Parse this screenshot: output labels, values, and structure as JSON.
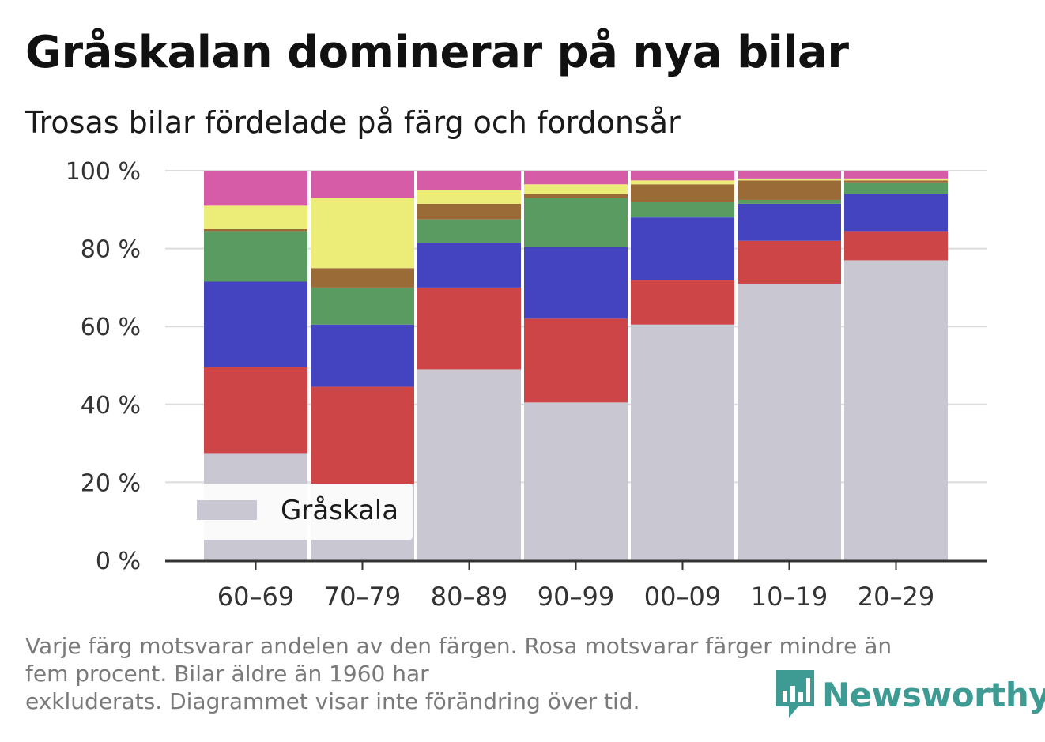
{
  "title": "Gråskalan dominerar på nya bilar",
  "subtitle": "Trosas bilar fördelade på färg och fordonsår",
  "caption": {
    "line1": "Varje färg motsvarar andelen av den färgen. Rosa motsvarar färger mindre än",
    "line2": "fem procent. Bilar äldre än 1960 har",
    "line3": "exkluderats. Diagrammet visar inte förändring över tid."
  },
  "logo": {
    "text": "Newsworthy",
    "icon": "newsworthy-bar-chart-icon",
    "color": "#3e9b93"
  },
  "chart_data": {
    "type": "bar",
    "stacked": true,
    "categories": [
      "60–69",
      "70–79",
      "80–89",
      "90–99",
      "00–09",
      "10–19",
      "20–29"
    ],
    "ylim": [
      0,
      100
    ],
    "yticks": [
      0,
      20,
      40,
      60,
      80,
      100
    ],
    "ytick_labels": [
      "0 %",
      "20 %",
      "40 %",
      "60 %",
      "80 %",
      "100 %"
    ],
    "grid": true,
    "legend_position": "bottom-left",
    "series": [
      {
        "name": "Gråskala",
        "color": "#c8c7d2",
        "values": [
          27.5,
          19.5,
          49.0,
          40.5,
          60.5,
          71.0,
          77.0
        ]
      },
      {
        "color": "#cd4546",
        "values": [
          22.0,
          25.0,
          21.0,
          21.5,
          11.5,
          11.0,
          7.5
        ]
      },
      {
        "color": "#4444c0",
        "values": [
          22.0,
          16.0,
          11.5,
          18.5,
          16.0,
          9.5,
          9.5
        ]
      },
      {
        "color": "#5a9b61",
        "values": [
          13.0,
          9.5,
          6.0,
          12.5,
          4.0,
          1.0,
          3.0
        ]
      },
      {
        "color": "#9a6b37",
        "values": [
          0.5,
          5.0,
          4.0,
          1.0,
          4.5,
          5.0,
          0.5
        ]
      },
      {
        "color": "#ecec78",
        "values": [
          6.0,
          18.0,
          3.5,
          2.5,
          1.0,
          0.5,
          0.5
        ]
      },
      {
        "color": "#d65ca8",
        "values": [
          9.0,
          7.0,
          5.0,
          3.5,
          2.5,
          2.0,
          2.0
        ]
      }
    ]
  }
}
